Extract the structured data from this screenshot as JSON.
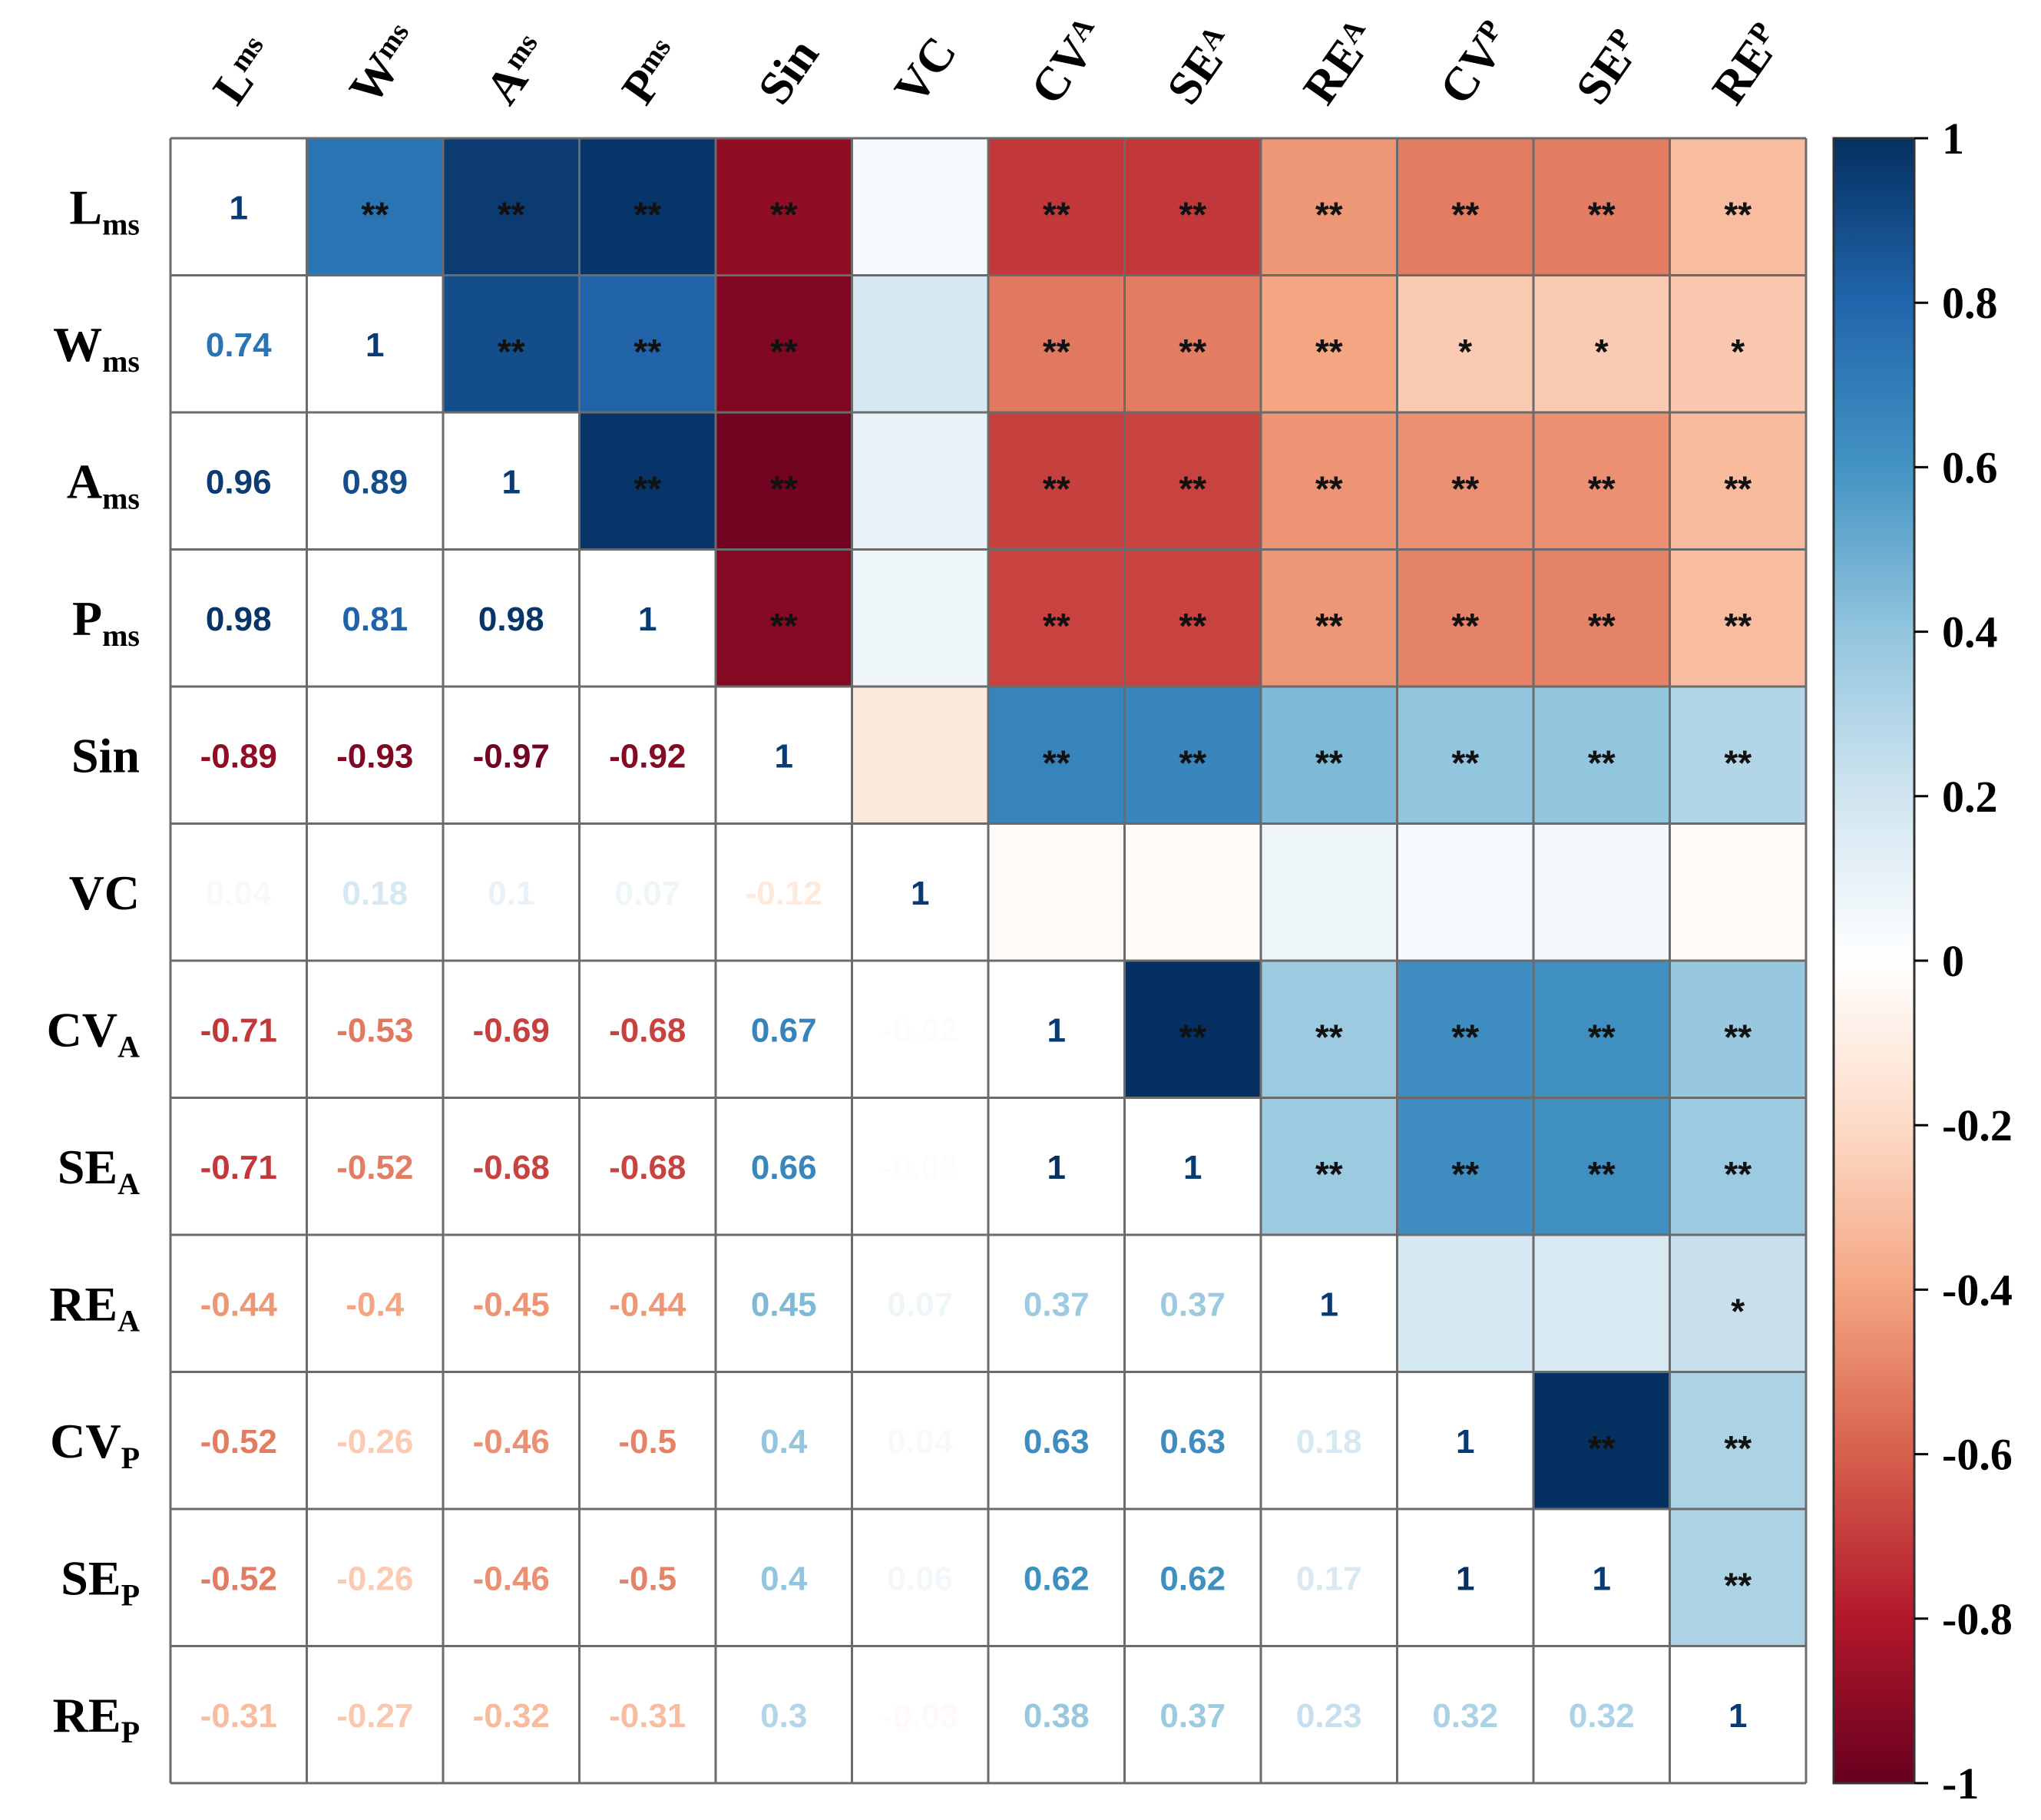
{
  "chart_data": {
    "type": "heatmap",
    "title": "",
    "variables": [
      {
        "base": "L",
        "sub": "ms"
      },
      {
        "base": "W",
        "sub": "ms"
      },
      {
        "base": "A",
        "sub": "ms"
      },
      {
        "base": "P",
        "sub": "ms"
      },
      {
        "base": "Sin",
        "sub": ""
      },
      {
        "base": "VC",
        "sub": ""
      },
      {
        "base": "CV",
        "sub": "A"
      },
      {
        "base": "SE",
        "sub": "A"
      },
      {
        "base": "RE",
        "sub": "A"
      },
      {
        "base": "CV",
        "sub": "P"
      },
      {
        "base": "SE",
        "sub": "P"
      },
      {
        "base": "RE",
        "sub": "P"
      }
    ],
    "matrix": [
      [
        1,
        0.74,
        0.96,
        0.98,
        -0.89,
        0.04,
        -0.71,
        -0.71,
        -0.44,
        -0.52,
        -0.52,
        -0.31
      ],
      [
        0.74,
        1,
        0.89,
        0.81,
        -0.93,
        0.18,
        -0.53,
        -0.52,
        -0.4,
        -0.26,
        -0.26,
        -0.27
      ],
      [
        0.96,
        0.89,
        1,
        0.98,
        -0.97,
        0.1,
        -0.69,
        -0.68,
        -0.45,
        -0.46,
        -0.46,
        -0.32
      ],
      [
        0.98,
        0.81,
        0.98,
        1,
        -0.92,
        0.07,
        -0.68,
        -0.68,
        -0.44,
        -0.5,
        -0.5,
        -0.31
      ],
      [
        -0.89,
        -0.93,
        -0.97,
        -0.92,
        1,
        -0.12,
        0.67,
        0.66,
        0.45,
        0.4,
        0.4,
        0.3
      ],
      [
        0.04,
        0.18,
        0.1,
        0.07,
        -0.12,
        1,
        -0.02,
        -0.02,
        0.07,
        0.04,
        0.06,
        -0.03
      ],
      [
        -0.71,
        -0.53,
        -0.69,
        -0.68,
        0.67,
        -0.02,
        1,
        1,
        0.37,
        0.63,
        0.62,
        0.38
      ],
      [
        -0.71,
        -0.52,
        -0.68,
        -0.68,
        0.66,
        -0.02,
        1,
        1,
        0.37,
        0.63,
        0.62,
        0.37
      ],
      [
        -0.44,
        -0.4,
        -0.45,
        -0.44,
        0.45,
        0.07,
        0.37,
        0.37,
        1,
        0.18,
        0.17,
        0.23
      ],
      [
        -0.52,
        -0.26,
        -0.46,
        -0.5,
        0.4,
        0.04,
        0.63,
        0.63,
        0.18,
        1,
        1,
        0.32
      ],
      [
        -0.52,
        -0.26,
        -0.46,
        -0.5,
        0.4,
        0.06,
        0.62,
        0.62,
        0.17,
        1,
        1,
        0.32
      ],
      [
        -0.31,
        -0.27,
        -0.32,
        -0.31,
        0.3,
        -0.03,
        0.38,
        0.37,
        0.23,
        0.32,
        0.32,
        1
      ]
    ],
    "significance": [
      [
        "",
        "**",
        "**",
        "**",
        "**",
        "",
        "**",
        "**",
        "**",
        "**",
        "**",
        "**"
      ],
      [
        "",
        "",
        "**",
        "**",
        "**",
        "",
        "**",
        "**",
        "**",
        "*",
        "*",
        "*"
      ],
      [
        "",
        "",
        "",
        "**",
        "**",
        "",
        "**",
        "**",
        "**",
        "**",
        "**",
        "**"
      ],
      [
        "",
        "",
        "",
        "",
        "**",
        "",
        "**",
        "**",
        "**",
        "**",
        "**",
        "**"
      ],
      [
        "",
        "",
        "",
        "",
        "",
        "",
        "**",
        "**",
        "**",
        "**",
        "**",
        "**"
      ],
      [
        "",
        "",
        "",
        "",
        "",
        "",
        "",
        "",
        "",
        "",
        "",
        ""
      ],
      [
        "",
        "",
        "",
        "",
        "",
        "",
        "",
        "**",
        "**",
        "**",
        "**",
        "**"
      ],
      [
        "",
        "",
        "",
        "",
        "",
        "",
        "",
        "",
        "**",
        "**",
        "**",
        "**"
      ],
      [
        "",
        "",
        "",
        "",
        "",
        "",
        "",
        "",
        "",
        "",
        "",
        "*"
      ],
      [
        "",
        "",
        "",
        "",
        "",
        "",
        "",
        "",
        "",
        "",
        "**",
        "**"
      ],
      [
        "",
        "",
        "",
        "",
        "",
        "",
        "",
        "",
        "",
        "",
        "",
        "**"
      ],
      [
        "",
        "",
        "",
        "",
        "",
        "",
        "",
        "",
        "",
        "",
        "",
        ""
      ]
    ],
    "colorbar": {
      "range": [
        -1,
        1
      ],
      "ticks": [
        1,
        0.8,
        0.6,
        0.4,
        0.2,
        0,
        -0.2,
        -0.4,
        -0.6,
        -0.8,
        -1
      ],
      "tick_labels": [
        "1",
        "0.8",
        "0.6",
        "0.4",
        "0.2",
        "0",
        "-0.2",
        "-0.4",
        "-0.6",
        "-0.8",
        "-1"
      ]
    },
    "colors": {
      "negative_strong": "#67001f",
      "neutral": "#ffffff",
      "positive_strong": "#053061",
      "grid": "#6b6b6b",
      "sig_text": "#111111"
    }
  }
}
